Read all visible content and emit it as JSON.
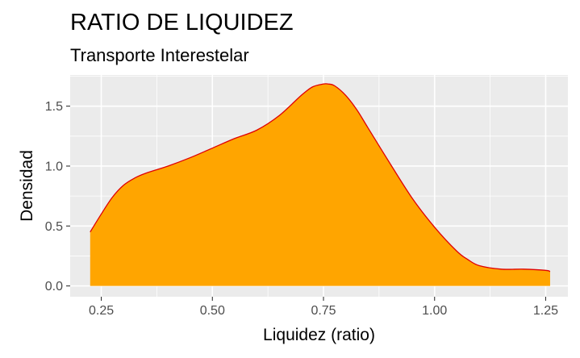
{
  "chart_data": {
    "type": "area",
    "title": "RATIO DE LIQUIDEZ",
    "subtitle": "Transporte Interestelar",
    "xlabel": "Liquidez (ratio)",
    "ylabel": "Densidad",
    "xlim": [
      0.18,
      1.3
    ],
    "ylim": [
      -0.09,
      1.76
    ],
    "x_ticks": [
      0.25,
      0.5,
      0.75,
      1.0,
      1.25
    ],
    "x_tick_labels": [
      "0.25",
      "0.50",
      "0.75",
      "1.00",
      "1.25"
    ],
    "y_ticks": [
      0.0,
      0.5,
      1.0,
      1.5
    ],
    "y_tick_labels": [
      "0.0",
      "0.5",
      "1.0",
      "1.5"
    ],
    "grid": true,
    "legend": "none",
    "colors": {
      "fill": "#FFA500",
      "line": "#E00000",
      "panel": "#EBEBEB",
      "grid": "#FFFFFF"
    },
    "series": [
      {
        "x": [
          0.225,
          0.25,
          0.275,
          0.3,
          0.325,
          0.35,
          0.4,
          0.45,
          0.5,
          0.55,
          0.6,
          0.65,
          0.7,
          0.725,
          0.75,
          0.76,
          0.775,
          0.8,
          0.825,
          0.85,
          0.9,
          0.95,
          1.0,
          1.05,
          1.075,
          1.1,
          1.15,
          1.2,
          1.25,
          1.26
        ],
        "y": [
          0.45,
          0.6,
          0.74,
          0.84,
          0.9,
          0.94,
          1.0,
          1.07,
          1.15,
          1.23,
          1.3,
          1.42,
          1.59,
          1.66,
          1.685,
          1.685,
          1.67,
          1.59,
          1.47,
          1.32,
          1.02,
          0.73,
          0.49,
          0.29,
          0.22,
          0.17,
          0.14,
          0.14,
          0.13,
          0.12
        ]
      }
    ]
  }
}
